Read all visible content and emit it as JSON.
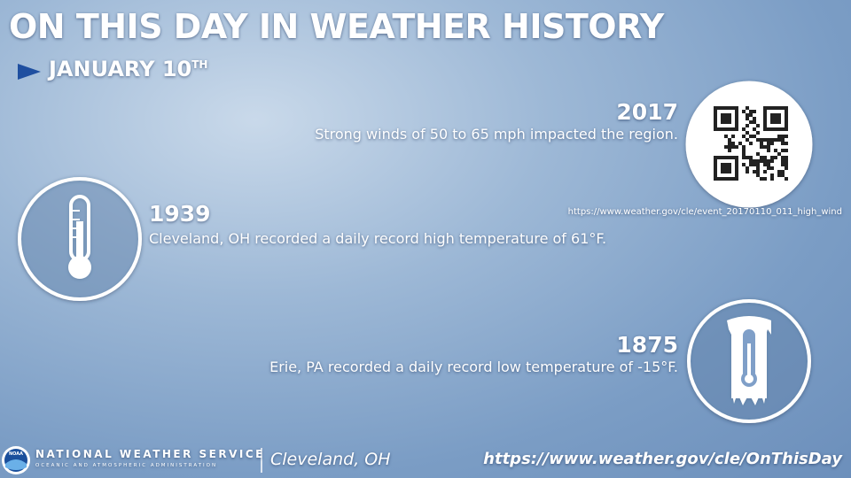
{
  "header": {
    "title": "ON THIS DAY IN WEATHER HISTORY",
    "date": "JANUARY 10",
    "date_suffix": "TH"
  },
  "events": [
    {
      "year": "2017",
      "description": "Strong winds of 50 to 65 mph impacted the region.",
      "link": "https://www.weather.gov/cle/event_20170110_011_high_wind"
    },
    {
      "year": "1939",
      "description": "Cleveland, OH recorded a daily record high temperature of 61°F."
    },
    {
      "year": "1875",
      "description": "Erie, PA recorded a daily record low temperature of -15°F."
    }
  ],
  "footer": {
    "logo": "NOAA",
    "agency": "NATIONAL WEATHER SERVICE",
    "subagency": "OCEANIC AND ATMOSPHERIC ADMINISTRATION",
    "office": "Cleveland, OH",
    "url": "https://www.weather.gov/cle/OnThisDay"
  }
}
